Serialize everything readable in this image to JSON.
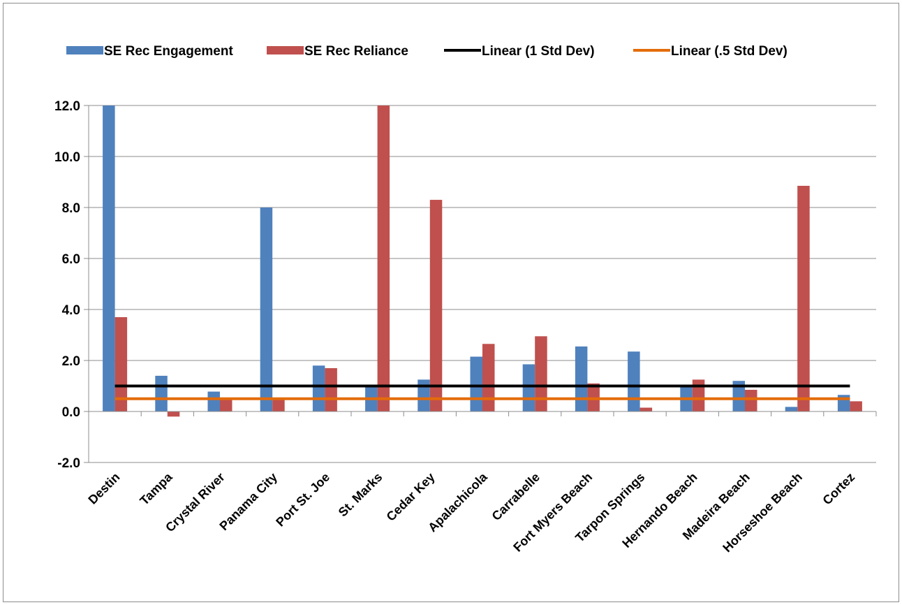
{
  "chart_data": {
    "type": "bar",
    "categories": [
      "Destin",
      "Tampa",
      "Crystal River",
      "Panama City",
      "Port St. Joe",
      "St. Marks",
      "Cedar Key",
      "Apalachicola",
      "Carrabelle",
      "Fort Myers Beach",
      "Tarpon Springs",
      "Hernando Beach",
      "Madeira Beach",
      "Horseshoe Beach",
      "Cortez"
    ],
    "series": [
      {
        "name": "SE Rec Engagement",
        "type": "bar",
        "color": "#4f81bd",
        "values": [
          12,
          1.4,
          0.78,
          8.0,
          1.8,
          1.0,
          1.25,
          2.15,
          1.85,
          2.55,
          2.35,
          1.0,
          1.2,
          0.18,
          0.65
        ]
      },
      {
        "name": "SE Rec Reliance",
        "type": "bar",
        "color": "#c0504d",
        "values": [
          3.7,
          -0.2,
          0.5,
          0.5,
          1.7,
          12,
          8.3,
          2.65,
          2.95,
          1.1,
          0.15,
          1.25,
          0.85,
          8.85,
          0.4
        ]
      },
      {
        "name": "Linear (1 Std Dev)",
        "type": "line",
        "color": "#000000",
        "values": [
          1,
          1,
          1,
          1,
          1,
          1,
          1,
          1,
          1,
          1,
          1,
          1,
          1,
          1,
          1
        ]
      },
      {
        "name": "Linear (.5 Std Dev)",
        "type": "line",
        "color": "#e46c0a",
        "values": [
          0.5,
          0.5,
          0.5,
          0.5,
          0.5,
          0.5,
          0.5,
          0.5,
          0.5,
          0.5,
          0.5,
          0.5,
          0.5,
          0.5,
          0.5
        ]
      }
    ],
    "ylim": [
      -2,
      12
    ],
    "yticks": [
      {
        "value": -2,
        "label": "-2.0"
      },
      {
        "value": 0,
        "label": "0.0"
      },
      {
        "value": 2,
        "label": "2.0"
      },
      {
        "value": 4,
        "label": "4.0"
      },
      {
        "value": 6,
        "label": "6.0"
      },
      {
        "value": 8,
        "label": "8.0"
      },
      {
        "value": 10,
        "label": "10.0"
      },
      {
        "value": 12,
        "label": "12.0"
      }
    ],
    "grid": true,
    "legend": "top"
  }
}
